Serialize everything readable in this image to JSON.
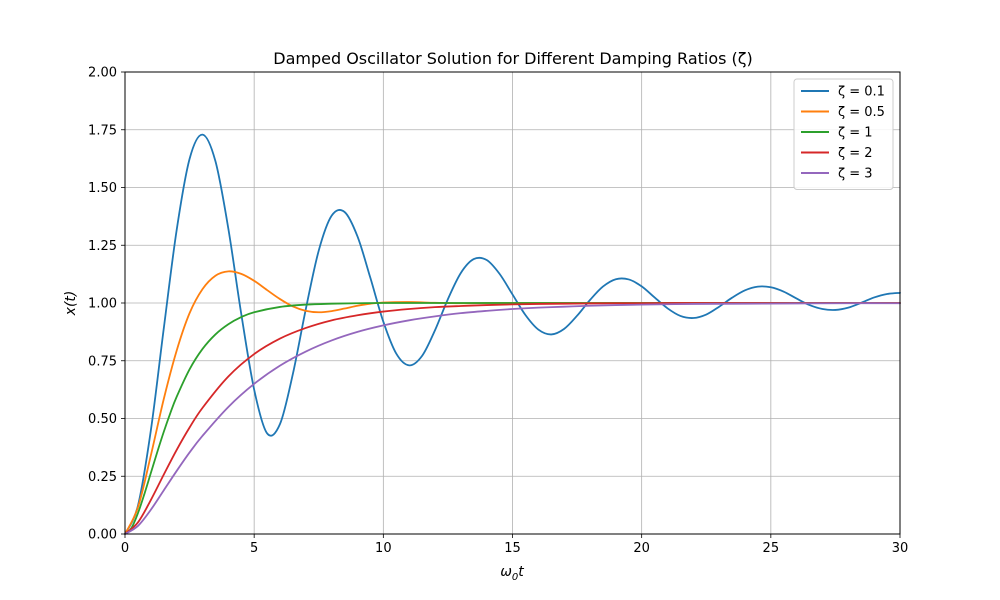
{
  "chart_data": {
    "type": "line",
    "title": "Damped Oscillator Solution for Different Damping Ratios (ζ)",
    "xlabel_base": "ω",
    "xlabel_sub": "0",
    "xlabel_tail": "t",
    "ylabel": "x(t)",
    "xlim": [
      0,
      30
    ],
    "ylim": [
      0,
      2.0
    ],
    "xticks": [
      0,
      5,
      10,
      15,
      20,
      25,
      30
    ],
    "xtick_labels": [
      "0",
      "5",
      "10",
      "15",
      "20",
      "25",
      "30"
    ],
    "yticks": [
      0,
      0.25,
      0.5,
      0.75,
      1.0,
      1.25,
      1.5,
      1.75,
      2.0
    ],
    "ytick_labels": [
      "0.00",
      "0.25",
      "0.50",
      "0.75",
      "1.00",
      "1.25",
      "1.50",
      "1.75",
      "2.00"
    ],
    "grid": true,
    "legend_position": "top-right",
    "series": [
      {
        "name": "ζ = 0.1",
        "color": "#1f77b4",
        "x": [
          0,
          0.5,
          1,
          1.5,
          2,
          2.5,
          3,
          3.5,
          4,
          4.5,
          5,
          5.5,
          6,
          6.5,
          7,
          7.5,
          8,
          8.5,
          9,
          9.5,
          10,
          10.5,
          11,
          11.5,
          12,
          12.5,
          13,
          13.5,
          14,
          14.5,
          15,
          15.5,
          16,
          16.5,
          17,
          17.5,
          18,
          18.5,
          19,
          19.5,
          20,
          20.5,
          21,
          21.5,
          22,
          22.5,
          23,
          23.5,
          24,
          24.5,
          25,
          25.5,
          26,
          26.5,
          27,
          27.5,
          28,
          28.5,
          29,
          29.5,
          30
        ],
        "y": [
          0,
          0.122,
          0.448,
          0.889,
          1.316,
          1.624,
          1.729,
          1.614,
          1.322,
          0.953,
          0.625,
          0.436,
          0.476,
          0.694,
          0.974,
          1.227,
          1.378,
          1.394,
          1.288,
          1.108,
          0.919,
          0.781,
          0.73,
          0.771,
          0.882,
          1.017,
          1.13,
          1.19,
          1.186,
          1.126,
          1.037,
          0.948,
          0.885,
          0.864,
          0.888,
          0.945,
          1.013,
          1.071,
          1.103,
          1.102,
          1.072,
          1.024,
          0.977,
          0.944,
          0.935,
          0.95,
          0.984,
          1.023,
          1.055,
          1.071,
          1.068,
          1.049,
          1.019,
          0.991,
          0.974,
          0.97,
          0.98,
          1.001,
          1.024,
          1.039,
          1.044
        ]
      },
      {
        "name": "ζ = 0.5",
        "color": "#ff7f0e",
        "x": [
          0,
          0.5,
          1,
          1.5,
          2,
          2.5,
          3,
          3.5,
          4,
          4.5,
          5,
          5.5,
          6,
          6.5,
          7,
          7.5,
          8,
          8.5,
          9,
          9.5,
          10,
          11,
          12,
          13,
          14,
          15,
          20,
          25,
          30
        ],
        "y": [
          0,
          0.115,
          0.34,
          0.584,
          0.794,
          0.956,
          1.06,
          1.118,
          1.137,
          1.126,
          1.096,
          1.056,
          1.017,
          0.985,
          0.966,
          0.96,
          0.965,
          0.976,
          0.988,
          0.997,
          1.002,
          1.004,
          1.001,
          0.999,
          1.0,
          1.0,
          1.0,
          1.0,
          1.0
        ]
      },
      {
        "name": "ζ = 1",
        "color": "#2ca02c",
        "x": [
          0,
          0.25,
          0.5,
          0.75,
          1,
          1.25,
          1.5,
          1.75,
          2,
          2.5,
          3,
          3.5,
          4,
          4.5,
          5,
          6,
          7,
          8,
          9,
          10,
          12,
          15,
          20,
          25,
          30
        ],
        "y": [
          0,
          0.026,
          0.09,
          0.173,
          0.264,
          0.355,
          0.442,
          0.522,
          0.594,
          0.713,
          0.801,
          0.864,
          0.908,
          0.939,
          0.96,
          0.983,
          0.993,
          0.997,
          0.999,
          1.0,
          1.0,
          1.0,
          1.0,
          1.0,
          1.0
        ]
      },
      {
        "name": "ζ = 2",
        "color": "#d62728",
        "x": [
          0,
          0.5,
          1,
          1.5,
          2,
          2.5,
          3,
          4,
          5,
          6,
          7,
          8,
          9,
          10,
          11,
          12,
          13,
          14,
          15,
          16,
          17,
          18,
          19,
          20,
          22,
          24,
          26,
          28,
          30
        ],
        "y": [
          0,
          0.05,
          0.147,
          0.257,
          0.364,
          0.461,
          0.546,
          0.682,
          0.779,
          0.846,
          0.892,
          0.925,
          0.947,
          0.963,
          0.974,
          0.982,
          0.987,
          0.991,
          0.994,
          0.996,
          0.997,
          0.998,
          0.999,
          0.999,
          1.0,
          1.0,
          1.0,
          1.0,
          1.0
        ]
      },
      {
        "name": "ζ = 3",
        "color": "#9467bd",
        "x": [
          0,
          0.5,
          1,
          1.5,
          2,
          2.5,
          3,
          4,
          5,
          6,
          7,
          8,
          9,
          10,
          11,
          12,
          13,
          14,
          15,
          16,
          17,
          18,
          19,
          20,
          22,
          24,
          26,
          28,
          30
        ],
        "y": [
          0,
          0.035,
          0.105,
          0.189,
          0.273,
          0.353,
          0.425,
          0.55,
          0.65,
          0.729,
          0.79,
          0.838,
          0.875,
          0.903,
          0.925,
          0.942,
          0.956,
          0.966,
          0.974,
          0.98,
          0.984,
          0.988,
          0.991,
          0.993,
          0.996,
          0.997,
          0.998,
          0.999,
          0.999
        ]
      }
    ]
  }
}
